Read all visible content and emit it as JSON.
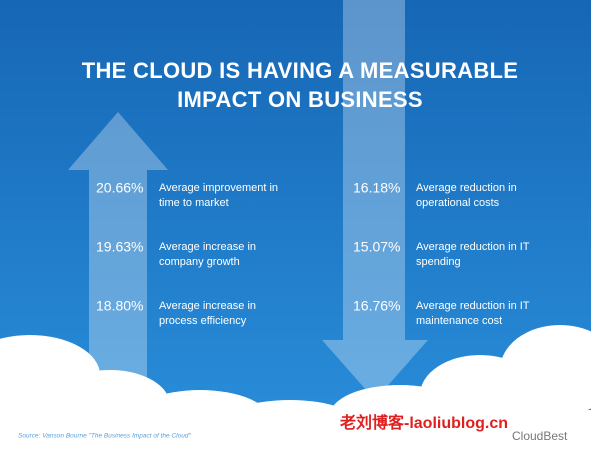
{
  "title": {
    "lines": [
      "THE CLOUD IS HAVING A MEASURABLE",
      "IMPACT ON BUSINESS"
    ]
  },
  "left_stats": [
    {
      "value": "20.66%",
      "lines": [
        "Average improvement in",
        "time to market"
      ]
    },
    {
      "value": "19.63%",
      "lines": [
        "Average increase in",
        "company growth"
      ]
    },
    {
      "value": "18.80%",
      "lines": [
        "Average increase in",
        "process efficiency"
      ]
    }
  ],
  "right_stats": [
    {
      "value": "16.18%",
      "lines": [
        "Average reduction in",
        "operational costs"
      ]
    },
    {
      "value": "15.07%",
      "lines": [
        "Average reduction in IT",
        "spending"
      ]
    },
    {
      "value": "16.76%",
      "lines": [
        "Average reduction in IT",
        "maintenance cost"
      ]
    }
  ],
  "source": "Source: Vanson Bourne \"The Business Impact of the Cloud\"",
  "watermark": {
    "site": "老刘博客-laoliublog.cn",
    "account": "CloudBest"
  }
}
